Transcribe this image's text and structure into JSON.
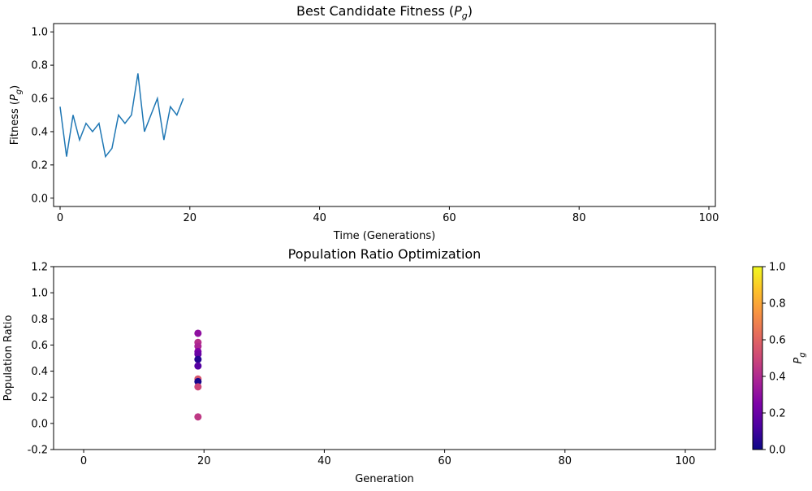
{
  "chart_data": [
    {
      "type": "line",
      "title": "Best Candidate Fitness (P_g)",
      "title_main": "Best Candidate Fitness (",
      "title_sym": "P",
      "title_sub": "g",
      "title_end": ")",
      "xlabel": "Time (Generations)",
      "ylabel_main": "Fitness (",
      "ylabel_sym": "P",
      "ylabel_sub": "g",
      "ylabel_end": ")",
      "xlim": [
        -1,
        101
      ],
      "ylim": [
        -0.05,
        1.05
      ],
      "xticks": [
        0,
        20,
        40,
        60,
        80,
        100
      ],
      "yticks": [
        0.0,
        0.2,
        0.4,
        0.6,
        0.8,
        1.0
      ],
      "grid": false,
      "series": [
        {
          "color": "#1f77b4",
          "x": [
            0,
            1,
            2,
            3,
            4,
            5,
            6,
            7,
            8,
            9,
            10,
            11,
            12,
            13,
            14,
            15,
            16,
            17,
            18,
            19
          ],
          "y": [
            0.55,
            0.25,
            0.5,
            0.35,
            0.45,
            0.4,
            0.45,
            0.25,
            0.3,
            0.5,
            0.45,
            0.5,
            0.75,
            0.4,
            0.5,
            0.6,
            0.35,
            0.55,
            0.5,
            0.6
          ]
        }
      ]
    },
    {
      "type": "scatter",
      "title": "Population Ratio Optimization",
      "xlabel": "Generation",
      "ylabel": "Population Ratio",
      "xlim": [
        -5,
        105
      ],
      "ylim": [
        -0.2,
        1.2
      ],
      "xticks": [
        0,
        20,
        40,
        60,
        80,
        100
      ],
      "yticks": [
        -0.2,
        0.0,
        0.2,
        0.4,
        0.6,
        0.8,
        1.0,
        1.2
      ],
      "grid": false,
      "colormap": "plasma",
      "colorbar": {
        "label": "P_g",
        "label_sym": "P",
        "label_sub": "g",
        "range": [
          0.0,
          1.0
        ],
        "ticks": [
          0.0,
          0.2,
          0.4,
          0.6,
          0.8,
          1.0
        ]
      },
      "points": [
        {
          "x": 19,
          "y": 0.69,
          "c": 0.3
        },
        {
          "x": 19,
          "y": 0.62,
          "c": 0.42
        },
        {
          "x": 19,
          "y": 0.59,
          "c": 0.38
        },
        {
          "x": 19,
          "y": 0.55,
          "c": 0.25
        },
        {
          "x": 19,
          "y": 0.53,
          "c": 0.2
        },
        {
          "x": 19,
          "y": 0.49,
          "c": 0.05
        },
        {
          "x": 19,
          "y": 0.44,
          "c": 0.15
        },
        {
          "x": 19,
          "y": 0.34,
          "c": 0.55
        },
        {
          "x": 19,
          "y": 0.32,
          "c": 0.02
        },
        {
          "x": 19,
          "y": 0.28,
          "c": 0.5
        },
        {
          "x": 19,
          "y": 0.05,
          "c": 0.45
        }
      ]
    }
  ]
}
